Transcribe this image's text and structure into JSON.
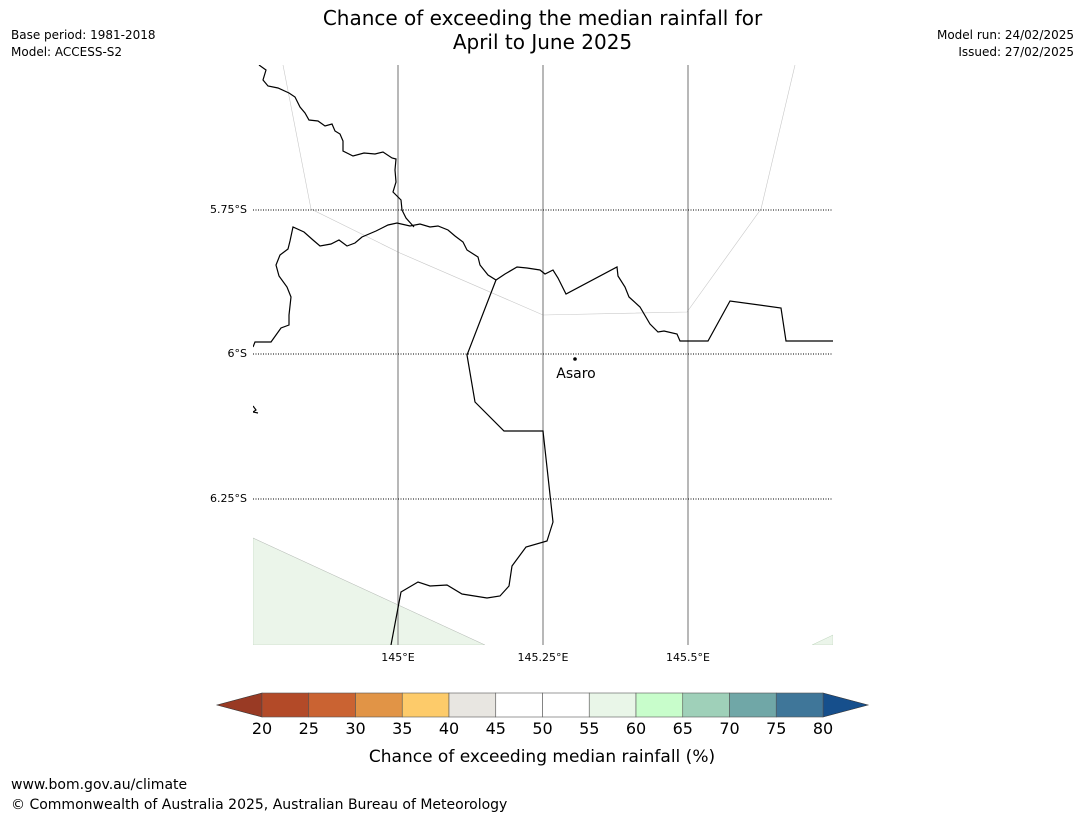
{
  "title": {
    "line1": "Chance of exceeding the median rainfall for",
    "line2": "April to June 2025"
  },
  "meta_left": {
    "base_period": "Base period: 1981-2018",
    "model": "Model: ACCESS-S2"
  },
  "meta_right": {
    "model_run": "Model run: 24/02/2025",
    "issued": "Issued: 27/02/2025"
  },
  "map": {
    "lat_labels": [
      "5.75°S",
      "6°S",
      "6.25°S"
    ],
    "lon_labels": [
      "145°E",
      "145.25°E",
      "145.5°E"
    ],
    "place": {
      "name": "Asaro"
    },
    "shaded_category_color": "#ebf5ea"
  },
  "colorbar": {
    "ticks": [
      "20",
      "25",
      "30",
      "35",
      "40",
      "45",
      "50",
      "55",
      "60",
      "65",
      "70",
      "75",
      "80"
    ],
    "colors": [
      "#b34a28",
      "#ca6332",
      "#e19446",
      "#fdcb6a",
      "#e8e6e1",
      "#ffffff",
      "#ffffff",
      "#e9f6e8",
      "#c8fdcb",
      "#9fd0b9",
      "#70a7a7",
      "#3f7699"
    ],
    "under_color": "#993a24",
    "over_color": "#164f8c",
    "label": "Chance of exceeding median rainfall (%)"
  },
  "footer": {
    "url": "www.bom.gov.au/climate",
    "copyright": "© Commonwealth of Australia 2025, Australian Bureau of Meteorology"
  }
}
